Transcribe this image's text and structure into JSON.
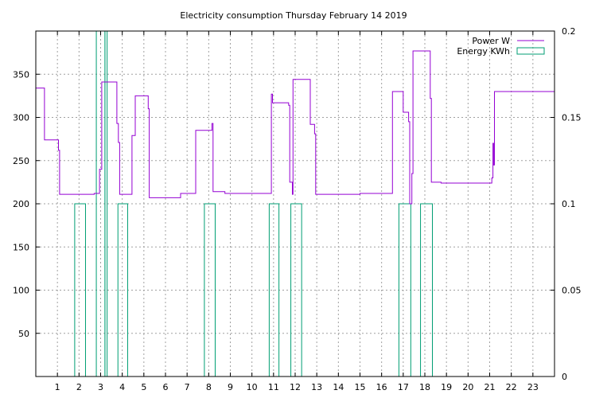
{
  "chart_data": {
    "type": "line",
    "title": "Electricity consumption Thursday February 14 2019",
    "xlabel": "",
    "ylabel": "",
    "xlim": [
      0,
      24
    ],
    "ylim": [
      0,
      400
    ],
    "y2lim": [
      0,
      0.2
    ],
    "x_ticks": [
      1,
      2,
      3,
      4,
      5,
      6,
      7,
      8,
      9,
      10,
      11,
      12,
      13,
      14,
      15,
      16,
      17,
      18,
      19,
      20,
      21,
      22,
      23
    ],
    "y_ticks": [
      50,
      100,
      150,
      200,
      250,
      300,
      350
    ],
    "y2_ticks": [
      "0",
      "0.05",
      "0.1",
      "0.15",
      "0.2"
    ],
    "grid": true,
    "legend_position": "top-right",
    "colors": {
      "power": "#9400d3",
      "energy": "#009e73"
    },
    "series": [
      {
        "name": "Power W",
        "axis": "left",
        "style": "steps",
        "points": [
          [
            0,
            334
          ],
          [
            0.4,
            334
          ],
          [
            0.4,
            274
          ],
          [
            1.05,
            274
          ],
          [
            1.05,
            262
          ],
          [
            1.1,
            262
          ],
          [
            1.1,
            211
          ],
          [
            2.7,
            211
          ],
          [
            2.7,
            212
          ],
          [
            2.95,
            212
          ],
          [
            2.95,
            240
          ],
          [
            3.05,
            240
          ],
          [
            3.05,
            341
          ],
          [
            3.75,
            341
          ],
          [
            3.75,
            293
          ],
          [
            3.82,
            293
          ],
          [
            3.82,
            271
          ],
          [
            3.88,
            271
          ],
          [
            3.88,
            211
          ],
          [
            4.45,
            211
          ],
          [
            4.45,
            279
          ],
          [
            4.6,
            279
          ],
          [
            4.6,
            325
          ],
          [
            5.2,
            325
          ],
          [
            5.2,
            310
          ],
          [
            5.25,
            310
          ],
          [
            5.25,
            207
          ],
          [
            6.7,
            207
          ],
          [
            6.7,
            212
          ],
          [
            7.4,
            212
          ],
          [
            7.4,
            285
          ],
          [
            8.15,
            285
          ],
          [
            8.15,
            293
          ],
          [
            8.2,
            293
          ],
          [
            8.2,
            214
          ],
          [
            8.75,
            214
          ],
          [
            8.75,
            212
          ],
          [
            10.9,
            212
          ],
          [
            10.9,
            327
          ],
          [
            10.95,
            327
          ],
          [
            10.95,
            317
          ],
          [
            11.7,
            317
          ],
          [
            11.7,
            314
          ],
          [
            11.75,
            314
          ],
          [
            11.75,
            225
          ],
          [
            11.87,
            225
          ],
          [
            11.87,
            211
          ],
          [
            11.9,
            211
          ],
          [
            11.9,
            344
          ],
          [
            12.7,
            344
          ],
          [
            12.7,
            292
          ],
          [
            12.9,
            292
          ],
          [
            12.9,
            281
          ],
          [
            12.95,
            281
          ],
          [
            12.95,
            211
          ],
          [
            15,
            211
          ],
          [
            15,
            212
          ],
          [
            16.5,
            212
          ],
          [
            16.5,
            330
          ],
          [
            17.0,
            330
          ],
          [
            17.0,
            306
          ],
          [
            17.25,
            306
          ],
          [
            17.25,
            295
          ],
          [
            17.3,
            295
          ],
          [
            17.3,
            200
          ],
          [
            17.4,
            200
          ],
          [
            17.4,
            235
          ],
          [
            17.45,
            235
          ],
          [
            17.45,
            377
          ],
          [
            18.25,
            377
          ],
          [
            18.25,
            322
          ],
          [
            18.3,
            322
          ],
          [
            18.3,
            225
          ],
          [
            18.75,
            225
          ],
          [
            18.75,
            224
          ],
          [
            21.1,
            224
          ],
          [
            21.1,
            230
          ],
          [
            21.15,
            230
          ],
          [
            21.15,
            270
          ],
          [
            21.18,
            270
          ],
          [
            21.18,
            245
          ],
          [
            21.22,
            245
          ],
          [
            21.22,
            330
          ],
          [
            24,
            330
          ]
        ]
      },
      {
        "name": "Energy KWh",
        "axis": "right",
        "style": "boxes",
        "bars": [
          [
            1.8,
            2.3,
            0.1
          ],
          [
            2.8,
            3.2,
            0.2
          ],
          [
            3.2,
            3.3,
            0.2
          ],
          [
            3.8,
            4.25,
            0.1
          ],
          [
            7.8,
            8.3,
            0.1
          ],
          [
            10.8,
            11.25,
            0.1
          ],
          [
            11.8,
            12.3,
            0.1
          ],
          [
            16.8,
            17.35,
            0.1
          ],
          [
            17.8,
            18.35,
            0.1
          ]
        ]
      }
    ]
  }
}
